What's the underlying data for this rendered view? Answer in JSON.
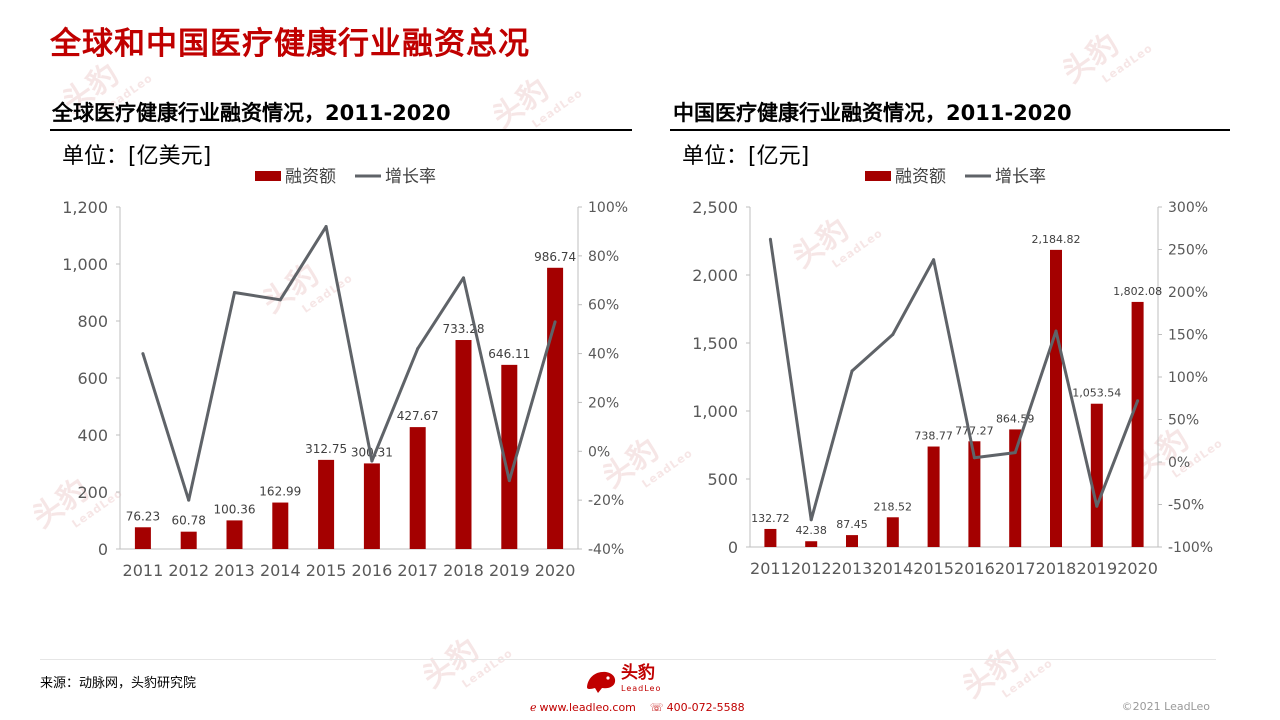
{
  "page_title": "全球和中国医疗健康行业融资总况",
  "footer": {
    "source": "来源：动脉网，头豹研究院",
    "logo_text": "头豹",
    "logo_sub": "LeadLeo",
    "website": "www.leadleo.com",
    "phone": "400-072-5588",
    "copyright": "©2021 LeadLeo"
  },
  "watermark": {
    "text": "头豹",
    "sub": "LeadLeo"
  },
  "colors": {
    "bar": "#a40000",
    "line": "#5f6368",
    "title": "#c00000",
    "axis_text": "#595959"
  },
  "legend": {
    "bar_label": "融资额",
    "line_label": "增长率"
  },
  "chart_data": [
    {
      "type": "bar+line",
      "title": "全球医疗健康行业融资情况，2011-2020",
      "unit": "单位：[亿美元]",
      "categories": [
        "2011",
        "2012",
        "2013",
        "2014",
        "2015",
        "2016",
        "2017",
        "2018",
        "2019",
        "2020"
      ],
      "series": [
        {
          "name": "融资额",
          "type": "bar",
          "axis": "left",
          "values": [
            76.23,
            60.78,
            100.36,
            162.99,
            312.75,
            300.31,
            427.67,
            733.28,
            646.11,
            986.74
          ],
          "labels": [
            "76.23",
            "60.78",
            "100.36",
            "162.99",
            "312.75",
            "300.31",
            "427.67",
            "733.28",
            "646.11",
            "986.74"
          ]
        },
        {
          "name": "增长率",
          "type": "line",
          "axis": "right",
          "values": [
            40,
            -20,
            65,
            62,
            92,
            -4,
            42,
            71,
            -12,
            53
          ]
        }
      ],
      "left_axis": {
        "min": 0,
        "max": 1200,
        "ticks": [
          0,
          200,
          400,
          600,
          800,
          1000,
          1200
        ],
        "tick_labels": [
          "0",
          "200",
          "400",
          "600",
          "800",
          "1,000",
          "1,200"
        ]
      },
      "right_axis": {
        "min": -40,
        "max": 100,
        "ticks": [
          -40,
          -20,
          0,
          20,
          40,
          60,
          80,
          100
        ],
        "tick_labels": [
          "-40%",
          "-20%",
          "0%",
          "20%",
          "40%",
          "60%",
          "80%",
          "100%"
        ]
      },
      "grid": false,
      "legend_position": "top"
    },
    {
      "type": "bar+line",
      "title": "中国医疗健康行业融资情况，2011-2020",
      "unit": "单位：[亿元]",
      "categories": [
        "2011",
        "2012",
        "2013",
        "2014",
        "2015",
        "2016",
        "2017",
        "2018",
        "2019",
        "2020"
      ],
      "series": [
        {
          "name": "融资额",
          "type": "bar",
          "axis": "left",
          "values": [
            132.72,
            42.38,
            87.45,
            218.52,
            738.77,
            777.27,
            864.59,
            2184.82,
            1053.54,
            1802.08
          ],
          "labels": [
            "132.72",
            "42.38",
            "87.45",
            "218.52",
            "738.77",
            "777.27",
            "864.59",
            "2,184.82",
            "1,053.54",
            "1,802.08"
          ]
        },
        {
          "name": "增长率",
          "type": "line",
          "axis": "right",
          "values": [
            262,
            -68,
            107,
            150,
            238,
            5,
            11,
            154,
            -52,
            72
          ]
        }
      ],
      "left_axis": {
        "min": 0,
        "max": 2500,
        "ticks": [
          0,
          500,
          1000,
          1500,
          2000,
          2500
        ],
        "tick_labels": [
          "0",
          "500",
          "1,000",
          "1,500",
          "2,000",
          "2,500"
        ]
      },
      "right_axis": {
        "min": -100,
        "max": 300,
        "ticks": [
          -100,
          -50,
          0,
          50,
          100,
          150,
          200,
          250,
          300
        ],
        "tick_labels": [
          "-100%",
          "-50%",
          "0%",
          "50%",
          "100%",
          "150%",
          "200%",
          "250%",
          "300%"
        ]
      },
      "grid": false,
      "legend_position": "top"
    }
  ]
}
